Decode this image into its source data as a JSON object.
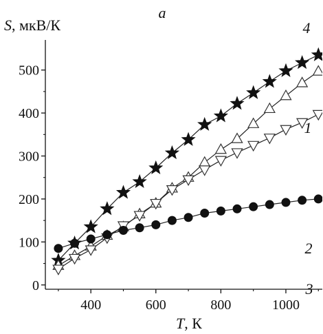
{
  "chart_data": {
    "type": "scatter",
    "panel_label": "a",
    "ylabel": {
      "symbol": "S",
      "unit": ", мкВ/К"
    },
    "xlabel": {
      "symbol": "T",
      "unit": ", К"
    },
    "xlim": [
      260,
      1110
    ],
    "ylim": [
      -10,
      570
    ],
    "xticks": [
      400,
      600,
      800,
      1000
    ],
    "yticks": [
      0,
      100,
      200,
      300,
      400,
      500
    ],
    "x_minor_ticks": [
      300,
      500,
      700,
      900,
      1100
    ],
    "y_minor_ticks": [
      50,
      150,
      250,
      350,
      450
    ],
    "grid": false,
    "series": [
      {
        "name": "1",
        "marker": "circle-filled",
        "x": [
          300,
          350,
          400,
          450,
          500,
          550,
          600,
          650,
          700,
          750,
          800,
          850,
          900,
          950,
          1000,
          1050,
          1100
        ],
        "y": [
          85,
          97,
          107,
          117,
          127,
          133,
          140,
          150,
          157,
          167,
          172,
          177,
          182,
          187,
          192,
          197,
          200
        ]
      },
      {
        "name": "2",
        "marker": "triangle-down-open",
        "x": [
          300,
          350,
          400,
          450,
          500,
          550,
          600,
          650,
          700,
          750,
          800,
          850,
          900,
          950,
          1000,
          1050,
          1100
        ],
        "y": [
          37,
          62,
          82,
          110,
          138,
          162,
          190,
          222,
          245,
          268,
          290,
          308,
          325,
          342,
          362,
          378,
          397
        ]
      },
      {
        "name": "3",
        "marker": "triangle-up-open",
        "x": [
          300,
          350,
          400,
          450,
          500,
          550,
          600,
          650,
          700,
          750,
          800,
          850,
          900,
          950,
          1000,
          1050,
          1100
        ],
        "y": [
          45,
          68,
          90,
          115,
          135,
          165,
          190,
          225,
          250,
          285,
          315,
          340,
          375,
          410,
          440,
          470,
          497
        ]
      },
      {
        "name": "4",
        "marker": "star-filled",
        "x": [
          300,
          350,
          400,
          450,
          500,
          550,
          600,
          650,
          700,
          750,
          800,
          850,
          900,
          950,
          1000,
          1050,
          1100
        ],
        "y": [
          57,
          97,
          135,
          177,
          215,
          240,
          272,
          307,
          338,
          373,
          393,
          422,
          447,
          473,
          498,
          517,
          535
        ]
      }
    ]
  }
}
